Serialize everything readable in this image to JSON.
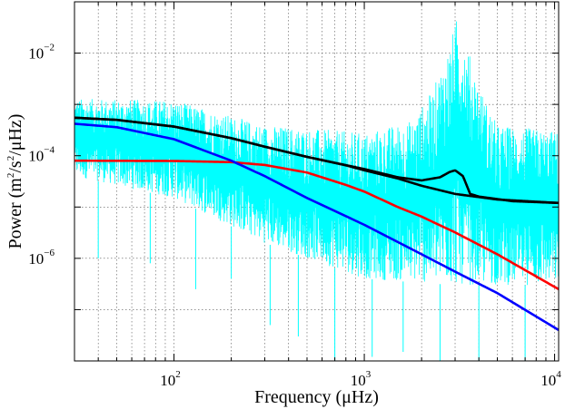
{
  "chart_data": {
    "type": "line",
    "title": "",
    "xlabel": "Frequency (μHz)",
    "ylabel": "Power (m²/s²/μHz)",
    "ylabel_parts": [
      "Power (m",
      "2",
      "/s",
      "2",
      "/μHz)"
    ],
    "x_scale": "log",
    "y_scale": "log",
    "xlim": [
      30,
      10500
    ],
    "ylim": [
      1e-08,
      0.1
    ],
    "grid": true,
    "x_ticks": [
      {
        "value": 100,
        "base": "10",
        "exp": "2"
      },
      {
        "value": 1000,
        "base": "10",
        "exp": "3"
      },
      {
        "value": 10000,
        "base": "10",
        "exp": "4"
      }
    ],
    "y_ticks": [
      {
        "value": 0.01,
        "base": "10",
        "exp": "−2"
      },
      {
        "value": 0.0001,
        "base": "10",
        "exp": "−4"
      },
      {
        "value": 1e-06,
        "base": "10",
        "exp": "−6"
      }
    ],
    "series": [
      {
        "color": "#00ffff",
        "style": "noisy-spectrum",
        "envelope_upper": [
          [
            30,
            0.0013
          ],
          [
            100,
            0.0012
          ],
          [
            300,
            0.0004
          ],
          [
            1000,
            0.00028
          ],
          [
            1800,
            0.0005
          ],
          [
            2300,
            0.002
          ],
          [
            2800,
            0.015
          ],
          [
            3100,
            0.06
          ],
          [
            3500,
            0.012
          ],
          [
            4200,
            0.0016
          ],
          [
            5000,
            0.0004
          ],
          [
            10500,
            0.0003
          ]
        ],
        "envelope_lower": [
          [
            30,
            4e-05
          ],
          [
            100,
            1.5e-05
          ],
          [
            300,
            2e-06
          ],
          [
            1000,
            4e-07
          ],
          [
            3000,
            3e-07
          ],
          [
            10500,
            3e-07
          ]
        ],
        "spikes_low": [
          [
            40,
            1e-06
          ],
          [
            75,
            8e-07
          ],
          [
            130,
            2.5e-07
          ],
          [
            200,
            4e-07
          ],
          [
            320,
            5e-08
          ],
          [
            450,
            3e-08
          ],
          [
            700,
            1e-08
          ],
          [
            1100,
            1.2e-08
          ],
          [
            1600,
            1.5e-08
          ],
          [
            2500,
            1e-08
          ],
          [
            4000,
            1e-08
          ],
          [
            7000,
            1e-08
          ]
        ]
      },
      {
        "color": "#000000",
        "x": [
          30,
          50,
          100,
          200,
          300,
          500,
          1000,
          1500,
          2000,
          2500,
          2800,
          3000,
          3300,
          3600,
          4000,
          6000,
          10500
        ],
        "values": [
          0.00055,
          0.0005,
          0.00037,
          0.00022,
          0.00015,
          9.5e-05,
          5.5e-05,
          3.8e-05,
          3.3e-05,
          3.8e-05,
          4.8e-05,
          5.2e-05,
          4e-05,
          1.8e-05,
          1.6e-05,
          1.3e-05,
          1.2e-05
        ]
      },
      {
        "color": "#000000",
        "x": [
          30,
          50,
          100,
          200,
          300,
          500,
          800,
          1000,
          1500,
          2000,
          3000,
          5000,
          10500
        ],
        "values": [
          0.00055,
          0.0005,
          0.00037,
          0.00022,
          0.00015,
          9.5e-05,
          6.5e-05,
          5.2e-05,
          3.6e-05,
          2.6e-05,
          1.8e-05,
          1.4e-05,
          1.2e-05
        ]
      },
      {
        "color": "#ff0000",
        "x": [
          30,
          100,
          200,
          300,
          500,
          800,
          1000,
          1500,
          2000,
          3000,
          5000,
          10500
        ],
        "values": [
          8e-05,
          7.9e-05,
          7.5e-05,
          6.6e-05,
          4.7e-05,
          2.7e-05,
          2e-05,
          1e-05,
          6.5e-06,
          3.2e-06,
          1.2e-06,
          2.5e-07
        ]
      },
      {
        "color": "#0000ff",
        "x": [
          30,
          50,
          100,
          200,
          300,
          500,
          1000,
          2000,
          3000,
          5000,
          10500
        ],
        "values": [
          0.00042,
          0.00036,
          0.00021,
          8e-05,
          4e-05,
          1.5e-05,
          4.5e-06,
          1.2e-06,
          5.5e-07,
          2.1e-07,
          4e-08
        ]
      }
    ]
  }
}
